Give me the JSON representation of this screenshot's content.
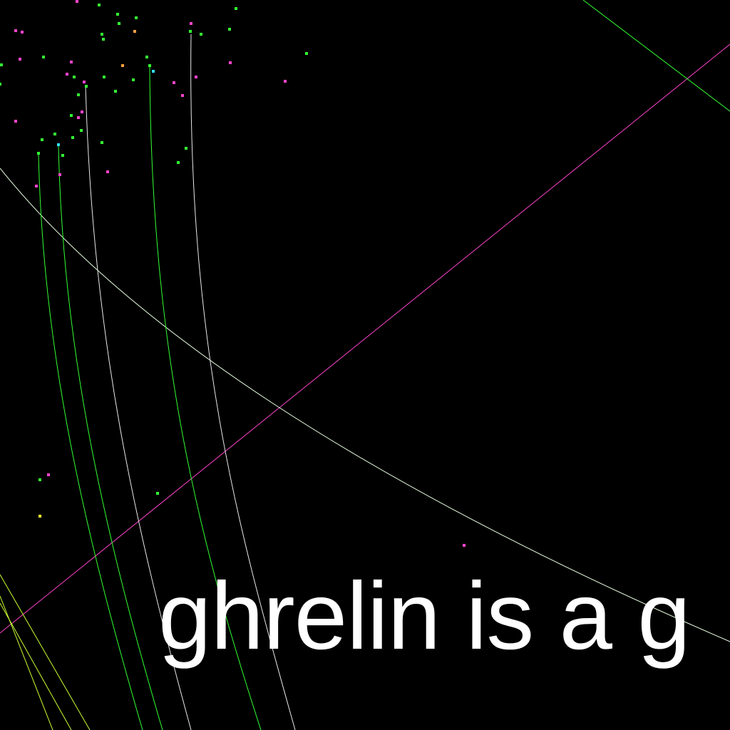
{
  "caption": "ghrelin is a g",
  "colors": {
    "background": "#000000",
    "caption": "#ffffff",
    "green": "#33ff33",
    "magenta": "#ff44cc",
    "white_line": "#e8e8e8",
    "yellow_green": "#ccff33",
    "cyan": "#33ddff",
    "orange": "#ffa040",
    "yellow": "#ffff33"
  }
}
